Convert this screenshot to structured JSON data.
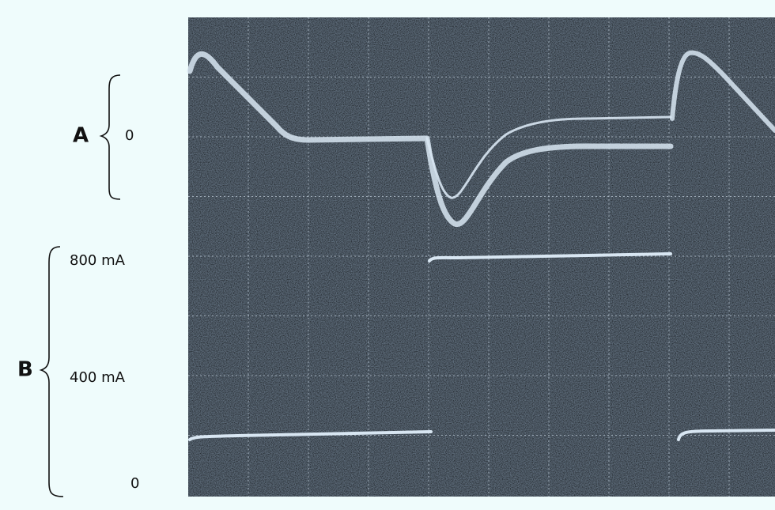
{
  "channel_a": {
    "name": "A",
    "zero_label": "0"
  },
  "channel_b": {
    "name": "B",
    "labels": [
      "800 mA",
      "400 mA",
      "0"
    ]
  }
}
